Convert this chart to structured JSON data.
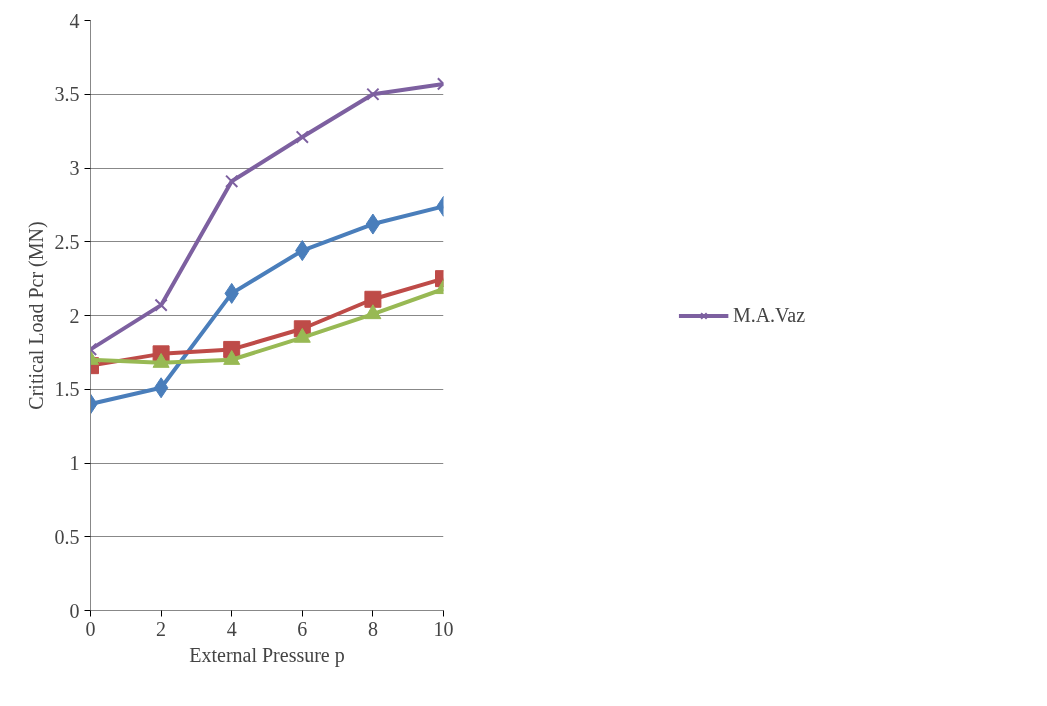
{
  "chart_data": {
    "type": "line",
    "xlabel": "External Pressure p",
    "ylabel": "Critical Load Pcr (MN)",
    "x": [
      0,
      2,
      4,
      6,
      8,
      10
    ],
    "series": [
      {
        "color": "#4a7ebb",
        "marker": "diamond",
        "values": [
          1.4,
          1.51,
          2.15,
          2.44,
          2.62,
          2.74
        ]
      },
      {
        "color": "#be4b48",
        "marker": "square",
        "values": [
          1.66,
          1.74,
          1.77,
          1.91,
          2.11,
          2.25
        ]
      },
      {
        "color": "#98b954",
        "marker": "triangle",
        "values": [
          1.7,
          1.68,
          1.7,
          1.85,
          2.01,
          2.18
        ]
      },
      {
        "name": "M.A.Vaz",
        "color": "#7d60a0",
        "marker": "cross",
        "values": [
          1.77,
          2.07,
          2.91,
          3.21,
          3.5,
          3.57
        ]
      }
    ],
    "xlim": [
      0,
      10
    ],
    "xticks": [
      0,
      2,
      4,
      6,
      8,
      10
    ],
    "ylim": [
      0,
      4
    ],
    "yticks": [
      0,
      0.5,
      1,
      1.5,
      2,
      2.5,
      3,
      3.5,
      4
    ],
    "grid": "y",
    "legend": "right",
    "line_style": "solid"
  }
}
